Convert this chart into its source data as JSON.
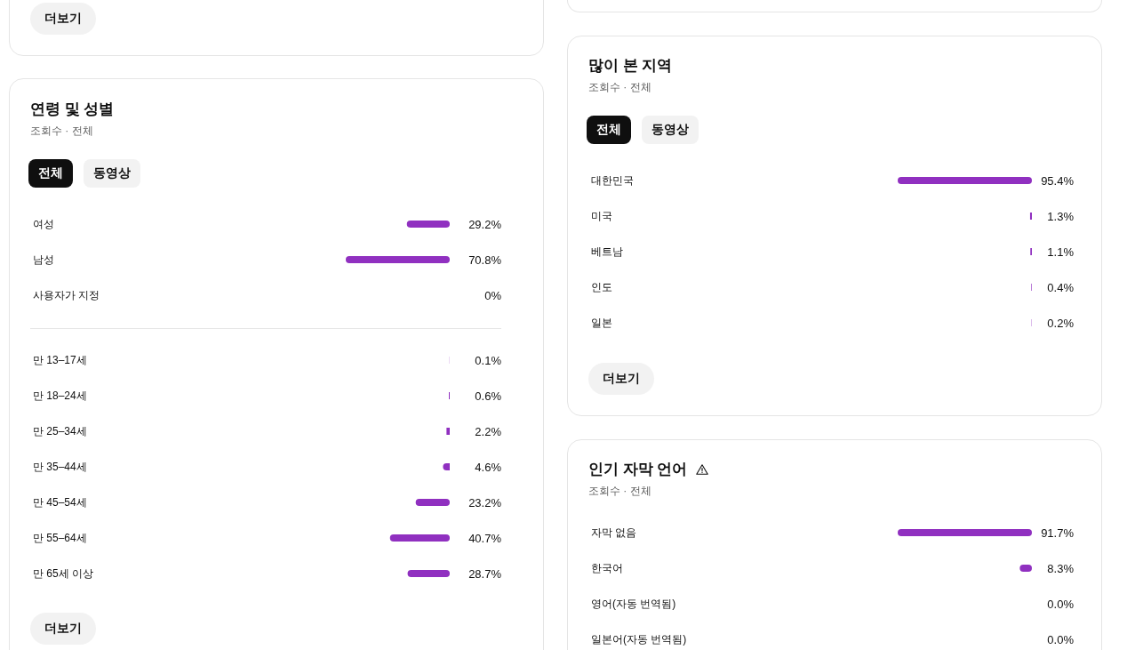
{
  "chart_data": [
    {
      "type": "other",
      "annotations": [
        "더보기"
      ]
    },
    {
      "type": "bar",
      "orientation": "horizontal",
      "title": "연령 및 성별",
      "subtitle": "조회수 · 전체",
      "categories": [
        "여성",
        "남성",
        "사용자가 지정"
      ],
      "values": [
        29.2,
        70.8,
        0
      ],
      "value_labels": [
        "29.2%",
        "70.8%",
        "0%"
      ],
      "color": "#9030c0",
      "annotations": [
        "전체",
        "동영상"
      ]
    },
    {
      "type": "bar",
      "orientation": "horizontal",
      "categories": [
        "만 13–17세",
        "만 18–24세",
        "만 25–34세",
        "만 35–44세",
        "만 45–54세",
        "만 55–64세",
        "만 65세 이상"
      ],
      "values": [
        0.1,
        0.6,
        2.2,
        4.6,
        23.2,
        40.7,
        28.7
      ],
      "value_labels": [
        "0.1%",
        "0.6%",
        "2.2%",
        "4.6%",
        "23.2%",
        "40.7%",
        "28.7%"
      ],
      "color": "#9030c0",
      "annotations": [
        "더보기"
      ]
    },
    {
      "type": "bar",
      "orientation": "horizontal",
      "title": "많이 본 지역",
      "subtitle": "조회수 · 전체",
      "categories": [
        "대한민국",
        "미국",
        "베트남",
        "인도",
        "일본"
      ],
      "values": [
        95.4,
        1.3,
        1.1,
        0.4,
        0.2
      ],
      "value_labels": [
        "95.4%",
        "1.3%",
        "1.1%",
        "0.4%",
        "0.2%"
      ],
      "color": "#9030c0",
      "annotations": [
        "전체",
        "동영상",
        "더보기"
      ]
    },
    {
      "type": "bar",
      "orientation": "horizontal",
      "title": "인기 자막 언어",
      "subtitle": "조회수 · 전체",
      "categories": [
        "자막 없음",
        "한국어",
        "영어(자동 번역됨)",
        "일본어(자동 번역됨)"
      ],
      "values": [
        91.7,
        8.3,
        0.0,
        null
      ],
      "value_labels": [
        "91.7%",
        "8.3%",
        "0.0%",
        "0.0%"
      ],
      "color": "#9030c0"
    }
  ]
}
